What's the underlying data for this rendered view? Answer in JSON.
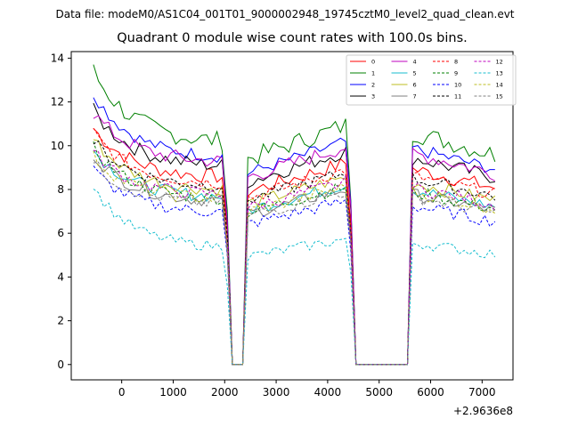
{
  "header": {
    "suptitle": "Data file: modeM0/AS1C04_001T01_9000002948_19745cztM0_level2_quad_clean.evt",
    "title": "Quadrant 0 module wise count rates with 100.0s bins."
  },
  "chart_data": {
    "type": "line",
    "title": "Quadrant 0 module wise count rates with 100.0s bins.",
    "xlabel": "",
    "ylabel": "",
    "x_offset_label": "+2.9636e8",
    "xlim": [
      -980,
      7600
    ],
    "ylim": [
      -0.7,
      14.3
    ],
    "xticks": [
      0,
      1000,
      2000,
      3000,
      4000,
      5000,
      6000,
      7000
    ],
    "yticks": [
      0,
      2,
      4,
      6,
      8,
      10,
      12,
      14
    ],
    "legend_position": "top-right",
    "legend_columns": 4,
    "segments": [
      [
        -550,
        2100
      ],
      [
        2450,
        4450
      ],
      [
        5650,
        7250
      ]
    ],
    "series": [
      {
        "name": "0",
        "color": "#ff0000",
        "dash": "solid",
        "level": 8.5,
        "start": 10.8,
        "wiggle": 0.35
      },
      {
        "name": "1",
        "color": "#008000",
        "dash": "solid",
        "level": 10.1,
        "start": 13.4,
        "wiggle": 0.45
      },
      {
        "name": "2",
        "color": "#0000ff",
        "dash": "solid",
        "level": 9.4,
        "start": 12.4,
        "wiggle": 0.3
      },
      {
        "name": "3",
        "color": "#000000",
        "dash": "solid",
        "level": 9.0,
        "start": 11.6,
        "wiggle": 0.35
      },
      {
        "name": "4",
        "color": "#bf00bf",
        "dash": "solid",
        "level": 9.2,
        "start": 11.5,
        "wiggle": 0.35
      },
      {
        "name": "5",
        "color": "#17becf",
        "dash": "solid",
        "level": 7.6,
        "start": 9.8,
        "wiggle": 0.3
      },
      {
        "name": "6",
        "color": "#bcbd22",
        "dash": "solid",
        "level": 7.9,
        "start": 10.3,
        "wiggle": 0.3
      },
      {
        "name": "7",
        "color": "#7f7f7f",
        "dash": "solid",
        "level": 7.4,
        "start": 9.6,
        "wiggle": 0.3
      },
      {
        "name": "8",
        "color": "#ff0000",
        "dash": "dashed",
        "level": 8.2,
        "start": 10.6,
        "wiggle": 0.3
      },
      {
        "name": "9",
        "color": "#008000",
        "dash": "dashed",
        "level": 7.5,
        "start": 9.9,
        "wiggle": 0.3
      },
      {
        "name": "10",
        "color": "#0000ff",
        "dash": "dashed",
        "level": 6.9,
        "start": 8.9,
        "wiggle": 0.3
      },
      {
        "name": "11",
        "color": "#000000",
        "dash": "dashed",
        "level": 8.1,
        "start": 10.2,
        "wiggle": 0.3
      },
      {
        "name": "12",
        "color": "#bf00bf",
        "dash": "dashed",
        "level": 7.7,
        "start": 9.7,
        "wiggle": 0.3
      },
      {
        "name": "13",
        "color": "#17becf",
        "dash": "dashed",
        "level": 5.3,
        "start": 8.1,
        "wiggle": 0.25
      },
      {
        "name": "14",
        "color": "#bcbd22",
        "dash": "dashed",
        "level": 7.5,
        "start": 9.5,
        "wiggle": 0.3
      },
      {
        "name": "15",
        "color": "#7f7f7f",
        "dash": "dashed",
        "level": 7.3,
        "start": 9.2,
        "wiggle": 0.3
      }
    ]
  }
}
